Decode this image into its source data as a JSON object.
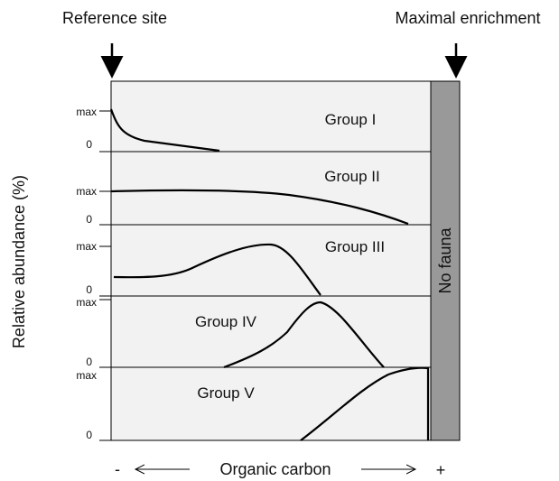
{
  "header": {
    "left": "Reference site",
    "right": "Maximal enrichment"
  },
  "y_axis_label": "Relative abundance (%)",
  "no_fauna": "No fauna",
  "x_axis": {
    "minus": "-",
    "label": "Organic carbon",
    "plus": "+"
  },
  "groups": [
    {
      "name": "Group I",
      "max": "max",
      "zero": "0"
    },
    {
      "name": "Group II",
      "max": "max",
      "zero": "0"
    },
    {
      "name": "Group III",
      "max": "max",
      "zero": "0"
    },
    {
      "name": "Group IV",
      "max": "max",
      "zero": "0"
    },
    {
      "name": "Group V",
      "max": "max",
      "zero": "0"
    }
  ]
}
